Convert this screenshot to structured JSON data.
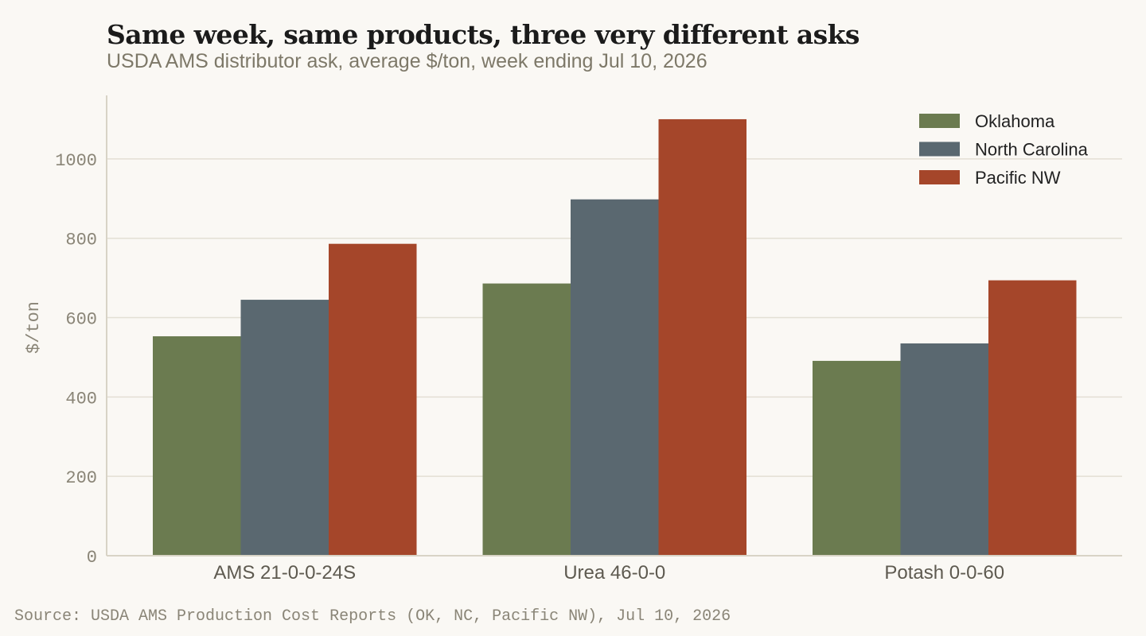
{
  "title": "Same week, same products, three very different asks",
  "subtitle": "USDA AMS distributor ask, average $/ton, week ending Jul 10, 2026",
  "source": "Source: USDA AMS Production Cost Reports (OK, NC, Pacific NW), Jul 10, 2026",
  "colors": {
    "background": "#faf8f4",
    "grid": "#e3dfd4",
    "axis": "#d8d3c6"
  },
  "chart_data": {
    "type": "bar",
    "categories": [
      "AMS 21-0-0-24S",
      "Urea 46-0-0",
      "Potash 0-0-60"
    ],
    "series": [
      {
        "name": "Oklahoma",
        "color": "#6b7b50",
        "values": [
          553,
          686,
          491
        ]
      },
      {
        "name": "North Carolina",
        "color": "#5a6870",
        "values": [
          645,
          898,
          535
        ]
      },
      {
        "name": "Pacific NW",
        "color": "#a5462a",
        "values": [
          786,
          1100,
          694
        ]
      }
    ],
    "ylabel": "$/ton",
    "xlabel": "",
    "ylim": [
      0,
      1160
    ],
    "yticks": [
      0,
      200,
      400,
      600,
      800,
      1000
    ],
    "grid": true,
    "legend_position": "top-right"
  }
}
